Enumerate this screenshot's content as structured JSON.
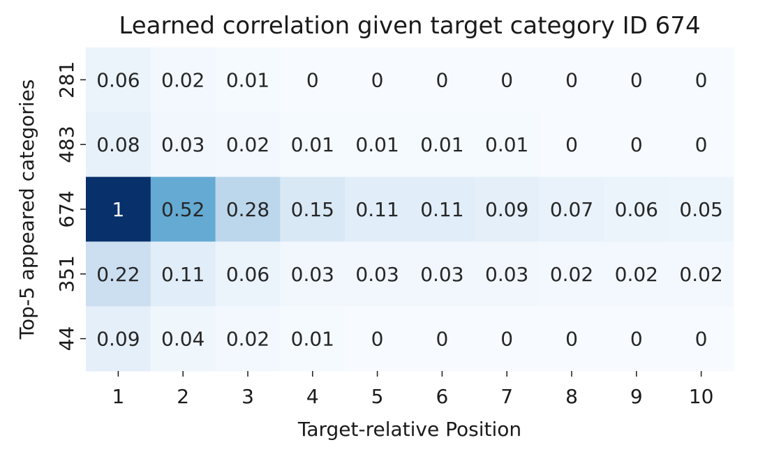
{
  "chart_data": {
    "type": "heatmap",
    "title": "Learned correlation given target category ID 674",
    "xlabel": "Target-relative Position",
    "ylabel": "Top-5 appeared categories",
    "x_categories": [
      "1",
      "2",
      "3",
      "4",
      "5",
      "6",
      "7",
      "8",
      "9",
      "10"
    ],
    "y_categories": [
      "281",
      "483",
      "674",
      "351",
      "44"
    ],
    "values": [
      [
        0.06,
        0.02,
        0.01,
        0,
        0,
        0,
        0,
        0,
        0,
        0
      ],
      [
        0.08,
        0.03,
        0.02,
        0.01,
        0.01,
        0.01,
        0.01,
        0,
        0,
        0
      ],
      [
        1,
        0.52,
        0.28,
        0.15,
        0.11,
        0.11,
        0.09,
        0.07,
        0.06,
        0.05
      ],
      [
        0.22,
        0.11,
        0.06,
        0.03,
        0.03,
        0.03,
        0.03,
        0.02,
        0.02,
        0.02
      ],
      [
        0.09,
        0.04,
        0.02,
        0.01,
        0,
        0,
        0,
        0,
        0,
        0
      ]
    ],
    "vmin": 0,
    "vmax": 1,
    "colormap": "Blues",
    "colorbar": false,
    "grid": false
  }
}
